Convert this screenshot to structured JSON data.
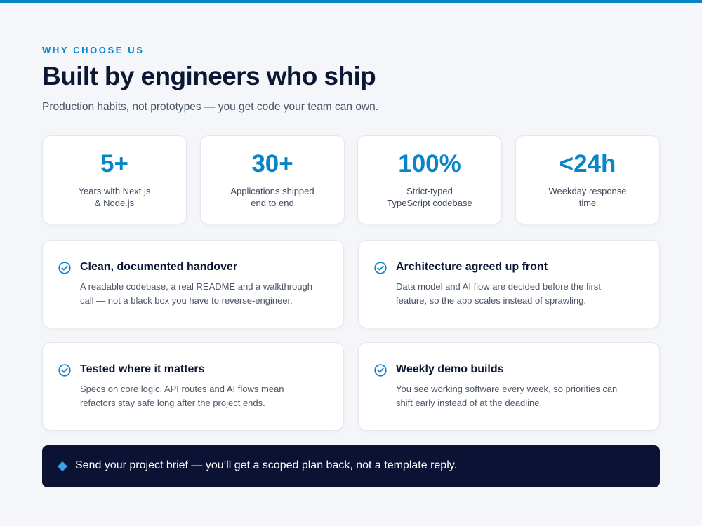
{
  "colors": {
    "accent": "#0a84c9",
    "heading": "#0b1733",
    "body_text": "#4a5568",
    "background": "#f4f6f9",
    "card": "#ffffff",
    "cta_background": "#0b1233",
    "cta_marker": "#3ea3e6"
  },
  "section": {
    "eyebrow": "WHY CHOOSE US",
    "title": "Built by engineers who ship",
    "subtitle": "Production habits, not prototypes — you get code your team can own."
  },
  "stats": [
    {
      "value": "5+",
      "label_line1": "Years with Next.js",
      "label_line2": "& Node.js"
    },
    {
      "value": "30+",
      "label_line1": "Applications shipped",
      "label_line2": "end to end"
    },
    {
      "value": "100%",
      "label_line1": "Strict-typed",
      "label_line2": "TypeScript codebase"
    },
    {
      "value": "<24h",
      "label_line1": "Weekday response",
      "label_line2": "time"
    }
  ],
  "features": [
    {
      "icon": "check-circle-icon",
      "title": "Clean, documented handover",
      "desc_line1": "A readable codebase, a real README and a walkthrough",
      "desc_line2": "call — not a black box you have to reverse-engineer."
    },
    {
      "icon": "check-circle-icon",
      "title": "Architecture agreed up front",
      "desc_line1": "Data model and AI flow are decided before the first",
      "desc_line2": "feature, so the app scales instead of sprawling."
    },
    {
      "icon": "check-circle-icon",
      "title": "Tested where it matters",
      "desc_line1": "Specs on core logic, API routes and AI flows mean",
      "desc_line2": "refactors stay safe long after the project ends."
    },
    {
      "icon": "check-circle-icon",
      "title": "Weekly demo builds",
      "desc_line1": "You see working software every week, so priorities can",
      "desc_line2": "shift early instead of at the deadline."
    }
  ],
  "cta": {
    "icon": "diamond-icon",
    "text": "Send your project brief — you’ll get a scoped plan back, not a template reply."
  }
}
